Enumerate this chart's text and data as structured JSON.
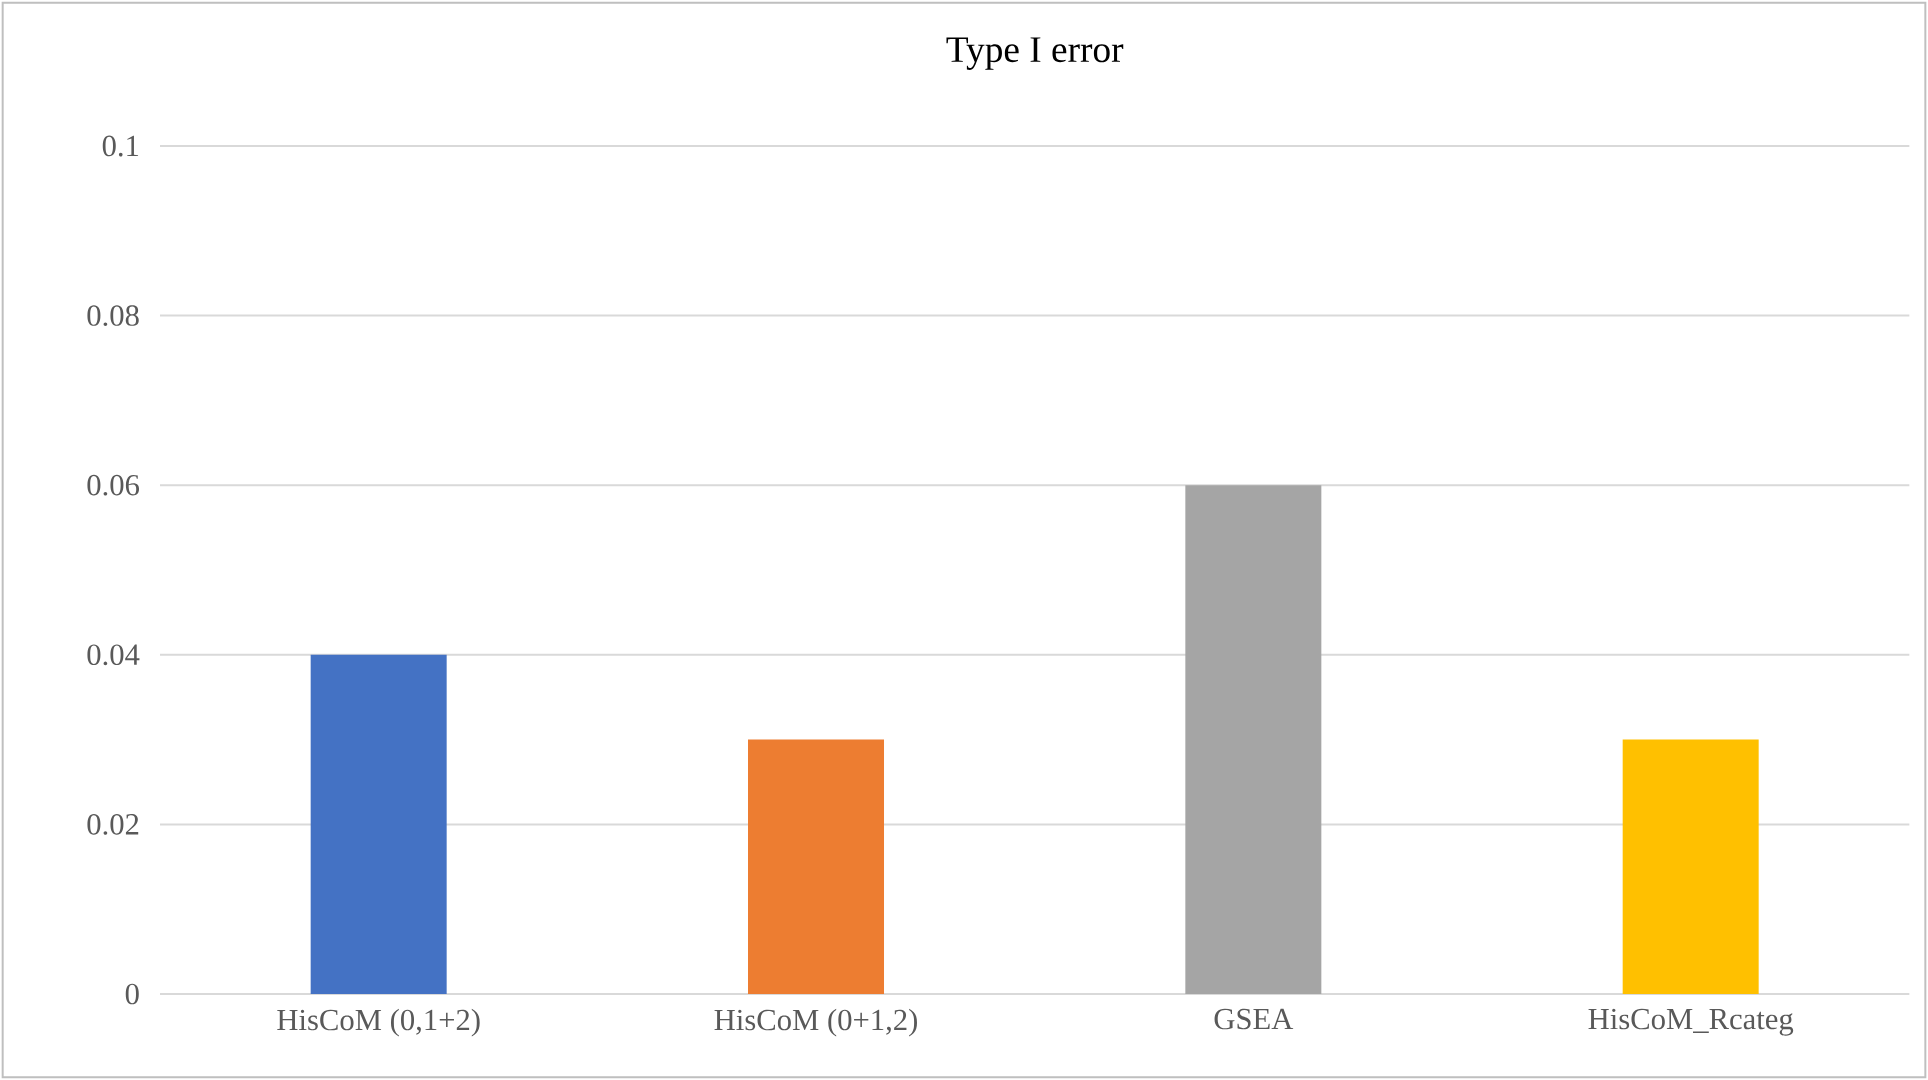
{
  "chart_data": {
    "type": "bar",
    "title": "Type I error",
    "categories": [
      "HisCoM (0,1+2)",
      "HisCoM (0+1,2)",
      "GSEA",
      "HisCoM_Rcateg"
    ],
    "values": [
      0.04,
      0.03,
      0.06,
      0.03
    ],
    "colors": [
      "#4472c4",
      "#ed7d31",
      "#a5a5a5",
      "#ffc000"
    ],
    "ylim": [
      0,
      0.1
    ],
    "yticks": [
      0,
      0.02,
      0.04,
      0.06,
      0.08,
      0.1
    ],
    "grid": "y"
  }
}
